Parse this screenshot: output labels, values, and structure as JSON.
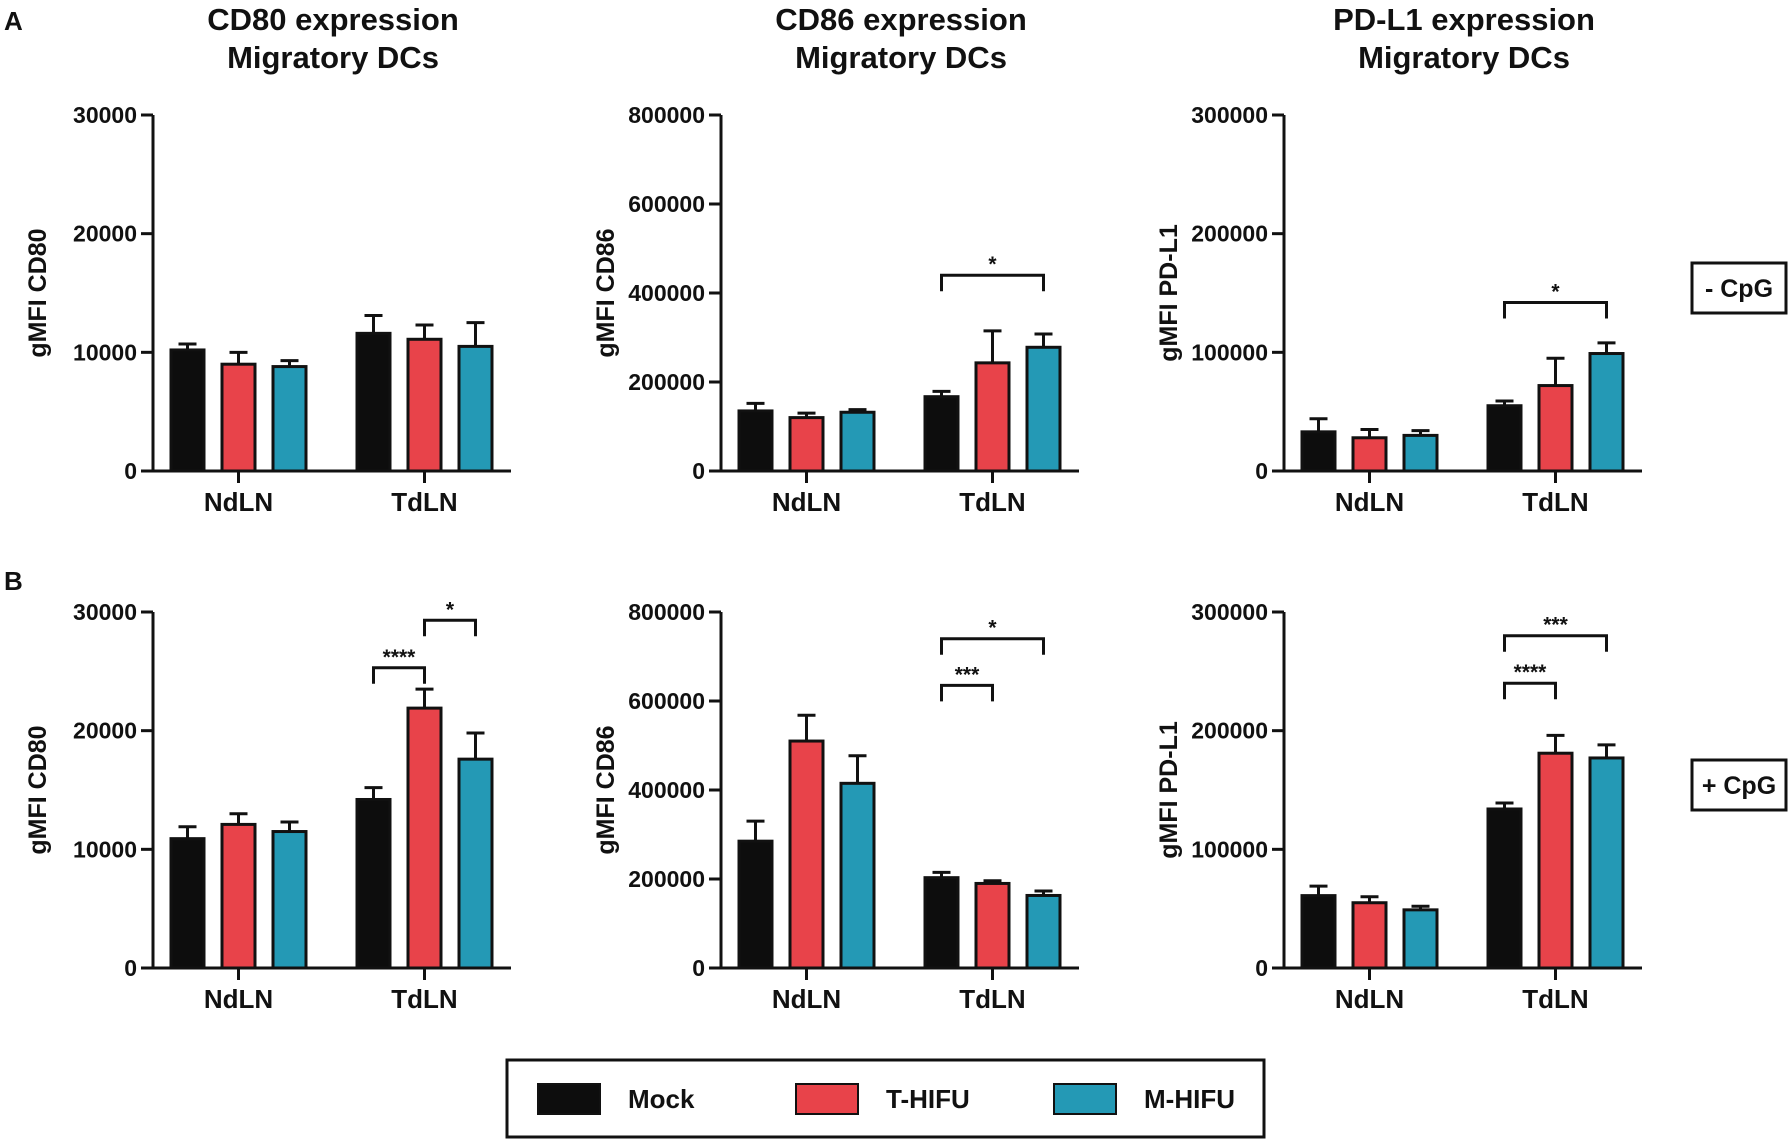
{
  "panels": [
    {
      "letter": "A",
      "condition": "- CpG"
    },
    {
      "letter": "B",
      "condition": "+ CpG"
    }
  ],
  "legend": [
    {
      "label": "Mock",
      "color": "#0d0d0d"
    },
    {
      "label": "T-HIFU",
      "color": "#e8434a"
    },
    {
      "label": "M-HIFU",
      "color": "#2499b5"
    }
  ],
  "chart_data": [
    {
      "type": "bar",
      "row": "A",
      "title": [
        "CD80 expression",
        "Migratory DCs"
      ],
      "ylabel": "gMFI CD80",
      "ylim": [
        0,
        30000
      ],
      "yticks": [
        0,
        10000,
        20000,
        30000
      ],
      "categories": [
        "NdLN",
        "TdLN"
      ],
      "series": [
        {
          "name": "Mock",
          "values": [
            10200,
            11600
          ],
          "errors": [
            500,
            1500
          ]
        },
        {
          "name": "T-HIFU",
          "values": [
            9000,
            11100
          ],
          "errors": [
            1000,
            1200
          ]
        },
        {
          "name": "M-HIFU",
          "values": [
            8800,
            10500
          ],
          "errors": [
            500,
            2000
          ]
        }
      ],
      "significance": []
    },
    {
      "type": "bar",
      "row": "A",
      "title": [
        "CD86 expression",
        "Migratory DCs"
      ],
      "ylabel": "gMFI CD86",
      "ylim": [
        0,
        800000
      ],
      "yticks": [
        0,
        200000,
        400000,
        600000,
        800000
      ],
      "categories": [
        "NdLN",
        "TdLN"
      ],
      "series": [
        {
          "name": "Mock",
          "values": [
            135000,
            167000
          ],
          "errors": [
            17000,
            12000
          ]
        },
        {
          "name": "T-HIFU",
          "values": [
            120000,
            243000
          ],
          "errors": [
            10000,
            72000
          ]
        },
        {
          "name": "M-HIFU",
          "values": [
            132000,
            278000
          ],
          "errors": [
            6000,
            30000
          ]
        }
      ],
      "significance": [
        {
          "category": 1,
          "from": 0,
          "to": 2,
          "label": "*",
          "y": 440000
        }
      ]
    },
    {
      "type": "bar",
      "row": "A",
      "title": [
        "PD-L1 expression",
        "Migratory DCs"
      ],
      "ylabel": "gMFI PD-L1",
      "ylim": [
        0,
        300000
      ],
      "yticks": [
        0,
        100000,
        200000,
        300000
      ],
      "categories": [
        "NdLN",
        "TdLN"
      ],
      "series": [
        {
          "name": "Mock",
          "values": [
            33000,
            55000
          ],
          "errors": [
            11000,
            4000
          ]
        },
        {
          "name": "T-HIFU",
          "values": [
            28000,
            72000
          ],
          "errors": [
            7000,
            23000
          ]
        },
        {
          "name": "M-HIFU",
          "values": [
            30000,
            99000
          ],
          "errors": [
            4000,
            9000
          ]
        }
      ],
      "significance": [
        {
          "category": 1,
          "from": 0,
          "to": 2,
          "label": "*",
          "y": 142000
        }
      ]
    },
    {
      "type": "bar",
      "row": "B",
      "title": [],
      "ylabel": "gMFI CD80",
      "ylim": [
        0,
        30000
      ],
      "yticks": [
        0,
        10000,
        20000,
        30000
      ],
      "categories": [
        "NdLN",
        "TdLN"
      ],
      "series": [
        {
          "name": "Mock",
          "values": [
            10900,
            14200
          ],
          "errors": [
            1000,
            1000
          ]
        },
        {
          "name": "T-HIFU",
          "values": [
            12100,
            21900
          ],
          "errors": [
            900,
            1600
          ]
        },
        {
          "name": "M-HIFU",
          "values": [
            11500,
            17600
          ],
          "errors": [
            800,
            2200
          ]
        }
      ],
      "significance": [
        {
          "category": 1,
          "from": 0,
          "to": 1,
          "label": "****",
          "y": 25300
        },
        {
          "category": 1,
          "from": 1,
          "to": 2,
          "label": "*",
          "y": 29300
        }
      ]
    },
    {
      "type": "bar",
      "row": "B",
      "title": [],
      "ylabel": "gMFI CD86",
      "ylim": [
        0,
        800000
      ],
      "yticks": [
        0,
        200000,
        400000,
        600000,
        800000
      ],
      "categories": [
        "NdLN",
        "TdLN"
      ],
      "series": [
        {
          "name": "Mock",
          "values": [
            285000,
            203000
          ],
          "errors": [
            45000,
            12000
          ]
        },
        {
          "name": "T-HIFU",
          "values": [
            510000,
            190000
          ],
          "errors": [
            58000,
            6000
          ]
        },
        {
          "name": "M-HIFU",
          "values": [
            415000,
            163000
          ],
          "errors": [
            62000,
            10000
          ]
        }
      ],
      "significance": [
        {
          "category": 1,
          "from": 0,
          "to": 1,
          "label": "***",
          "y": 635000
        },
        {
          "category": 1,
          "from": 0,
          "to": 2,
          "label": "*",
          "y": 740000
        }
      ]
    },
    {
      "type": "bar",
      "row": "B",
      "title": [],
      "ylabel": "gMFI PD-L1",
      "ylim": [
        0,
        300000
      ],
      "yticks": [
        0,
        100000,
        200000,
        300000
      ],
      "categories": [
        "NdLN",
        "TdLN"
      ],
      "series": [
        {
          "name": "Mock",
          "values": [
            61000,
            134000
          ],
          "errors": [
            8000,
            5000
          ]
        },
        {
          "name": "T-HIFU",
          "values": [
            55000,
            181000
          ],
          "errors": [
            5000,
            15000
          ]
        },
        {
          "name": "M-HIFU",
          "values": [
            49000,
            177000
          ],
          "errors": [
            3000,
            11000
          ]
        }
      ],
      "significance": [
        {
          "category": 1,
          "from": 0,
          "to": 1,
          "label": "****",
          "y": 240000
        },
        {
          "category": 1,
          "from": 0,
          "to": 2,
          "label": "***",
          "y": 280000
        }
      ]
    }
  ]
}
